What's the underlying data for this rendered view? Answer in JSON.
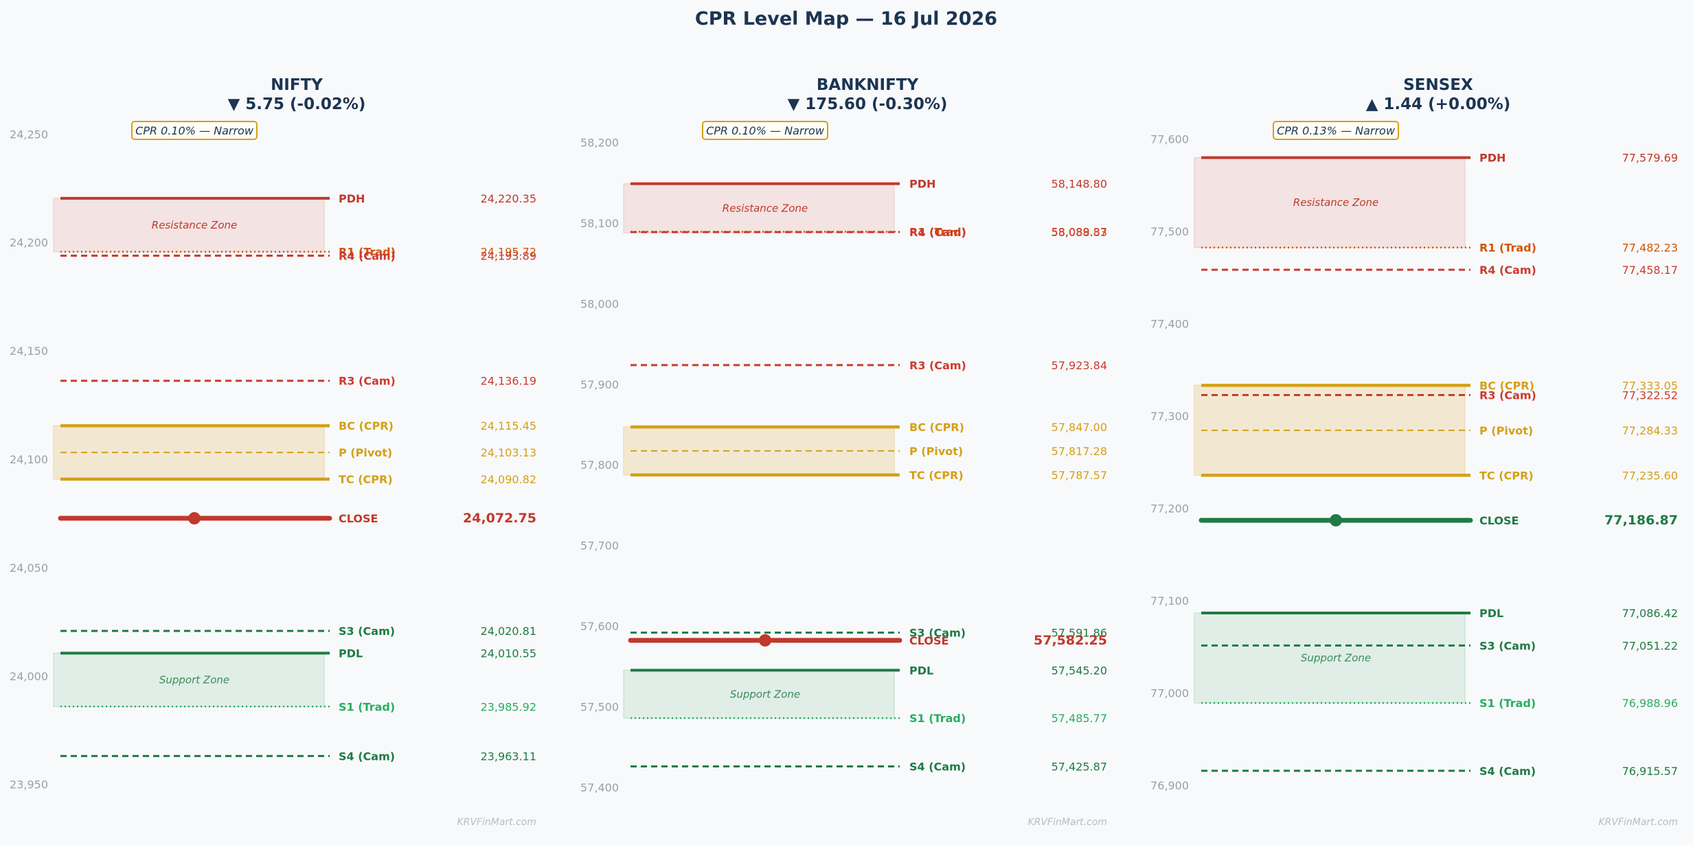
{
  "title": "CPR Level Map — 16 Jul 2026",
  "watermark": "KRVFinMart.com",
  "colors": {
    "resistance": "#c0392b",
    "cam_resistance": "#cc3b2f",
    "trad_resistance": "#d35400",
    "cpr": "#d4a017",
    "support": "#1e7b45",
    "trad_support": "#27ae60",
    "close_down": "#c0392b",
    "close_up": "#1e7b45"
  },
  "chart_data": [
    {
      "type": "line",
      "name": "NIFTY",
      "change_text": "▼ 5.75 (-0.02%)",
      "direction": "down",
      "cpr_badge": "CPR 0.10% — Narrow",
      "ylim": [
        23942,
        24258
      ],
      "yticks": [
        23950,
        24000,
        24050,
        24100,
        24150,
        24200,
        24250
      ],
      "ytick_labels": [
        "23,950",
        "24,000",
        "24,050",
        "24,100",
        "24,150",
        "24,200",
        "24,250"
      ],
      "zones": [
        {
          "label": "Resistance Zone",
          "kind": "resistance",
          "from": 24195.7,
          "to": 24220.35
        },
        {
          "label": "",
          "kind": "cpr",
          "from": 24090.82,
          "to": 24115.45
        },
        {
          "label": "Support Zone",
          "kind": "support",
          "from": 23985.92,
          "to": 24010.55
        }
      ],
      "levels": [
        {
          "name": "PDH",
          "value": 24220.35,
          "value_label": "24,220.35",
          "style": "solid",
          "kind": "resistance"
        },
        {
          "name": "R1 (Trad)",
          "value": 24195.72,
          "value_label": "24,195.72",
          "style": "dotted",
          "kind": "trad_resistance"
        },
        {
          "name": "R4 (Cam)",
          "value": 24193.89,
          "value_label": "24,193.89",
          "style": "dashed",
          "kind": "cam_resistance"
        },
        {
          "name": "R3 (Cam)",
          "value": 24136.19,
          "value_label": "24,136.19",
          "style": "dashed",
          "kind": "cam_resistance"
        },
        {
          "name": "BC (CPR)",
          "value": 24115.45,
          "value_label": "24,115.45",
          "style": "solid",
          "kind": "cpr"
        },
        {
          "name": "P (Pivot)",
          "value": 24103.13,
          "value_label": "24,103.13",
          "style": "dashed",
          "kind": "cpr"
        },
        {
          "name": "TC (CPR)",
          "value": 24090.82,
          "value_label": "24,090.82",
          "style": "solid",
          "kind": "cpr"
        },
        {
          "name": "CLOSE",
          "value": 24072.75,
          "value_label": "24,072.75",
          "style": "close",
          "kind": "close_down"
        },
        {
          "name": "S3 (Cam)",
          "value": 24020.81,
          "value_label": "24,020.81",
          "style": "dashed",
          "kind": "support"
        },
        {
          "name": "PDL",
          "value": 24010.55,
          "value_label": "24,010.55",
          "style": "solid",
          "kind": "support"
        },
        {
          "name": "S1 (Trad)",
          "value": 23985.92,
          "value_label": "23,985.92",
          "style": "dotted",
          "kind": "trad_support"
        },
        {
          "name": "S4 (Cam)",
          "value": 23963.11,
          "value_label": "23,963.11",
          "style": "dashed",
          "kind": "support"
        }
      ]
    },
    {
      "type": "line",
      "name": "BANKNIFTY",
      "change_text": "▼ 175.60 (-0.30%)",
      "direction": "down",
      "cpr_badge": "CPR 0.10% — Narrow",
      "ylim": [
        57382,
        58232
      ],
      "yticks": [
        57400,
        57500,
        57600,
        57700,
        57800,
        57900,
        58000,
        58100,
        58200
      ],
      "ytick_labels": [
        "57,400",
        "57,500",
        "57,600",
        "57,700",
        "57,800",
        "57,900",
        "58,000",
        "58,100",
        "58,200"
      ],
      "zones": [
        {
          "label": "Resistance Zone",
          "kind": "resistance",
          "from": 58088.0,
          "to": 58148.8
        },
        {
          "label": "",
          "kind": "cpr",
          "from": 57787.57,
          "to": 57847.0
        },
        {
          "label": "Support Zone",
          "kind": "support",
          "from": 57485.77,
          "to": 57545.2
        }
      ],
      "levels": [
        {
          "name": "PDH",
          "value": 58148.8,
          "value_label": "58,148.80",
          "style": "solid",
          "kind": "resistance"
        },
        {
          "name": "R1 (Trad)",
          "value": 58089.37,
          "value_label": "58,089.37",
          "style": "dotted",
          "kind": "trad_resistance"
        },
        {
          "name": "R4 (Cam)",
          "value": 58088.83,
          "value_label": "58,088.83",
          "style": "dashed",
          "kind": "cam_resistance"
        },
        {
          "name": "R3 (Cam)",
          "value": 57923.84,
          "value_label": "57,923.84",
          "style": "dashed",
          "kind": "cam_resistance"
        },
        {
          "name": "BC (CPR)",
          "value": 57847.0,
          "value_label": "57,847.00",
          "style": "solid",
          "kind": "cpr"
        },
        {
          "name": "P (Pivot)",
          "value": 57817.28,
          "value_label": "57,817.28",
          "style": "dashed",
          "kind": "cpr"
        },
        {
          "name": "TC (CPR)",
          "value": 57787.57,
          "value_label": "57,787.57",
          "style": "solid",
          "kind": "cpr"
        },
        {
          "name": "S3 (Cam)",
          "value": 57591.86,
          "value_label": "57,591.86",
          "style": "dashed",
          "kind": "support"
        },
        {
          "name": "CLOSE",
          "value": 57582.25,
          "value_label": "57,582.25",
          "style": "close",
          "kind": "close_down"
        },
        {
          "name": "PDL",
          "value": 57545.2,
          "value_label": "57,545.20",
          "style": "solid",
          "kind": "support"
        },
        {
          "name": "S1 (Trad)",
          "value": 57485.77,
          "value_label": "57,485.77",
          "style": "dotted",
          "kind": "trad_support"
        },
        {
          "name": "S4 (Cam)",
          "value": 57425.87,
          "value_label": "57,425.87",
          "style": "dashed",
          "kind": "support"
        }
      ]
    },
    {
      "type": "line",
      "name": "SENSEX",
      "change_text": "▲ 1.44 (+0.00%)",
      "direction": "up",
      "cpr_badge": "CPR 0.13% — Narrow",
      "ylim": [
        76882,
        77624
      ],
      "yticks": [
        76900,
        77000,
        77100,
        77200,
        77300,
        77400,
        77500,
        77600
      ],
      "ytick_labels": [
        "76,900",
        "77,000",
        "77,100",
        "77,200",
        "77,300",
        "77,400",
        "77,500",
        "77,600"
      ],
      "zones": [
        {
          "label": "Resistance Zone",
          "kind": "resistance",
          "from": 77482.23,
          "to": 77579.69
        },
        {
          "label": "",
          "kind": "cpr",
          "from": 77235.6,
          "to": 77333.05
        },
        {
          "label": "Support Zone",
          "kind": "support",
          "from": 76988.96,
          "to": 77086.42
        }
      ],
      "levels": [
        {
          "name": "PDH",
          "value": 77579.69,
          "value_label": "77,579.69",
          "style": "solid",
          "kind": "resistance"
        },
        {
          "name": "R1 (Trad)",
          "value": 77482.23,
          "value_label": "77,482.23",
          "style": "dotted",
          "kind": "trad_resistance"
        },
        {
          "name": "R4 (Cam)",
          "value": 77458.17,
          "value_label": "77,458.17",
          "style": "dashed",
          "kind": "cam_resistance"
        },
        {
          "name": "BC (CPR)",
          "value": 77333.05,
          "value_label": "77,333.05",
          "style": "solid",
          "kind": "cpr"
        },
        {
          "name": "R3 (Cam)",
          "value": 77322.52,
          "value_label": "77,322.52",
          "style": "dashed",
          "kind": "cam_resistance"
        },
        {
          "name": "P (Pivot)",
          "value": 77284.33,
          "value_label": "77,284.33",
          "style": "dashed",
          "kind": "cpr"
        },
        {
          "name": "TC (CPR)",
          "value": 77235.6,
          "value_label": "77,235.60",
          "style": "solid",
          "kind": "cpr"
        },
        {
          "name": "CLOSE",
          "value": 77186.87,
          "value_label": "77,186.87",
          "style": "close",
          "kind": "close_up"
        },
        {
          "name": "PDL",
          "value": 77086.42,
          "value_label": "77,086.42",
          "style": "solid",
          "kind": "support"
        },
        {
          "name": "S3 (Cam)",
          "value": 77051.22,
          "value_label": "77,051.22",
          "style": "dashed",
          "kind": "support"
        },
        {
          "name": "S1 (Trad)",
          "value": 76988.96,
          "value_label": "76,988.96",
          "style": "dotted",
          "kind": "trad_support"
        },
        {
          "name": "S4 (Cam)",
          "value": 76915.57,
          "value_label": "76,915.57",
          "style": "dashed",
          "kind": "support"
        }
      ]
    }
  ]
}
